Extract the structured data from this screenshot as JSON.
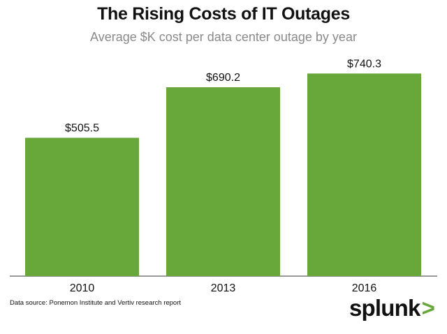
{
  "chart_data": {
    "type": "bar",
    "title": "The Rising Costs of IT Outages",
    "subtitle": "Average $K cost per data center outage by year",
    "categories": [
      "2010",
      "2013",
      "2016"
    ],
    "values": [
      505.5,
      690.2,
      740.3
    ],
    "data_labels": [
      "$505.5",
      "$690.2",
      "$740.3"
    ],
    "xlabel": "",
    "ylabel": "",
    "ylim": [
      0,
      800
    ],
    "grid": false,
    "bar_color": "#68a73a"
  },
  "footer": {
    "source": "Data source: Ponemon Institute and Vertiv research report",
    "logo_text": "splunk",
    "logo_mark": ">"
  }
}
